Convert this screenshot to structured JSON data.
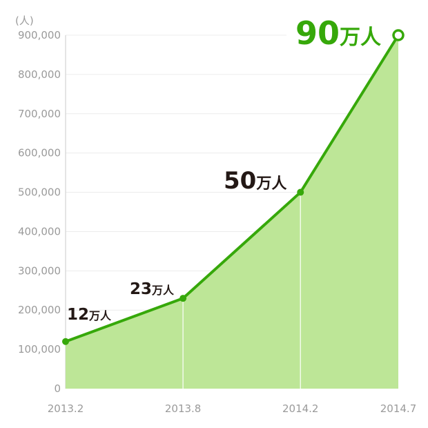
{
  "chart_data": {
    "type": "area",
    "ylabel": "(人)",
    "xlabel": "",
    "ylim": [
      0,
      900000
    ],
    "y_ticks": [
      "0",
      "100,000",
      "200,000",
      "300,000",
      "400,000",
      "500,000",
      "600,000",
      "700,000",
      "800,000",
      "900,000"
    ],
    "x_ticks": [
      "2013.2",
      "2013.8",
      "2014.2",
      "2014.7"
    ],
    "grid": true,
    "x": [
      "2013.2",
      "2013.8",
      "2014.2",
      "2014.7"
    ],
    "values": [
      120000,
      230000,
      500000,
      900000
    ],
    "data_labels": [
      {
        "num": "12",
        "unit": "万人"
      },
      {
        "num": "23",
        "unit": "万人"
      },
      {
        "num": "50",
        "unit": "万人"
      },
      {
        "num": "90",
        "unit": "万人"
      }
    ],
    "colors": {
      "line": "#36a80a",
      "fill": "#bde697",
      "label": "#231815",
      "highlight": "#36a80a",
      "tick": "#9a9a9a",
      "grid": "#ececec"
    }
  }
}
